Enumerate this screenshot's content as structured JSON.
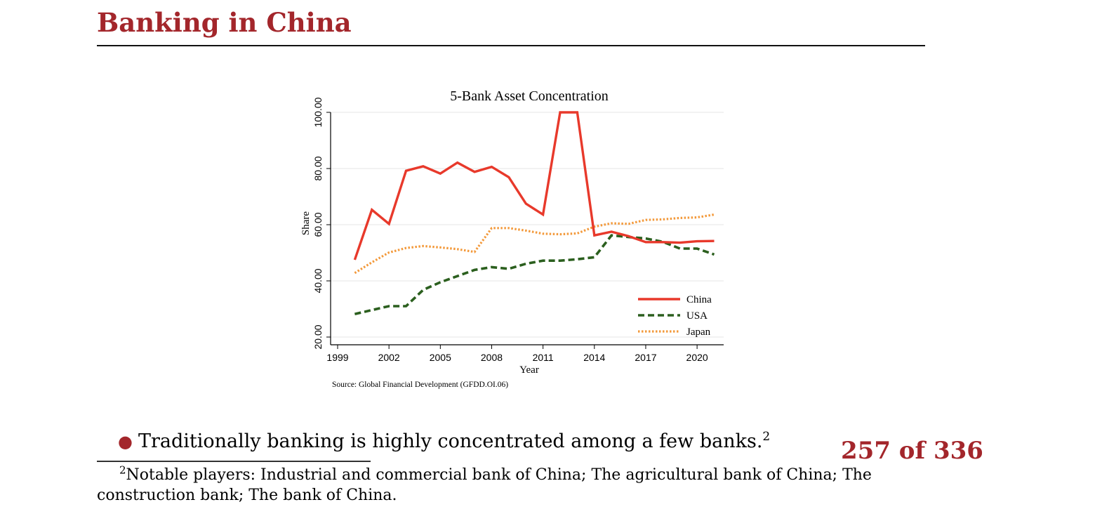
{
  "slide": {
    "title": "Banking in China",
    "bullet": "Traditionally banking is highly concentrated among a few banks.",
    "bullet_footnote_mark": "2",
    "page_counter": "257 of 336",
    "footnote_mark": "2",
    "footnote_text": "Notable players: Industrial and commercial bank of China; The agricultural bank of China; The construction bank; The bank of China."
  },
  "colors": {
    "title": "#a3262b",
    "china": "#e8392b",
    "usa": "#2b5f1e",
    "japan": "#f39a3c",
    "grid": "#e6e6e6"
  },
  "chart_data": {
    "type": "line",
    "title": "5-Bank Asset Concentration",
    "xlabel": "Year",
    "ylabel": "Share",
    "source": "Source: Global Financial Development (GFDD.OI.06)",
    "xlim": [
      1999,
      2021
    ],
    "ylim": [
      20,
      100
    ],
    "xticks": [
      1999,
      2002,
      2005,
      2008,
      2011,
      2014,
      2017,
      2020
    ],
    "yticks": [
      20,
      40,
      60,
      80,
      100
    ],
    "ytick_labels": [
      "20.00",
      "40.00",
      "60.00",
      "80.00",
      "100.00"
    ],
    "grid": true,
    "legend_position": "bottom-right",
    "x": [
      2000,
      2001,
      2002,
      2003,
      2004,
      2005,
      2006,
      2007,
      2008,
      2009,
      2010,
      2011,
      2012,
      2013,
      2014,
      2015,
      2016,
      2017,
      2018,
      2019,
      2020,
      2021
    ],
    "series": [
      {
        "name": "China",
        "style": "solid",
        "values": [
          47.5,
          65.3,
          60.3,
          79.2,
          80.8,
          78.2,
          82.1,
          78.8,
          80.6,
          76.9,
          67.5,
          63.6,
          100,
          100,
          56.2,
          57.5,
          55.9,
          53.8,
          53.8,
          53.6,
          54.1,
          54.2
        ]
      },
      {
        "name": "USA",
        "style": "dashed",
        "values": [
          28.2,
          29.6,
          31.0,
          31.0,
          36.8,
          39.5,
          41.7,
          43.9,
          44.9,
          44.3,
          46.1,
          47.2,
          47.2,
          47.7,
          48.4,
          56.2,
          55.6,
          55.1,
          53.9,
          51.5,
          51.5,
          49.4
        ]
      },
      {
        "name": "Japan",
        "style": "dotted",
        "values": [
          42.8,
          46.6,
          50.1,
          51.7,
          52.4,
          51.9,
          51.3,
          50.3,
          58.8,
          58.8,
          57.9,
          56.8,
          56.6,
          56.9,
          59.3,
          60.5,
          60.3,
          61.7,
          61.9,
          62.4,
          62.6,
          63.6
        ]
      }
    ]
  }
}
